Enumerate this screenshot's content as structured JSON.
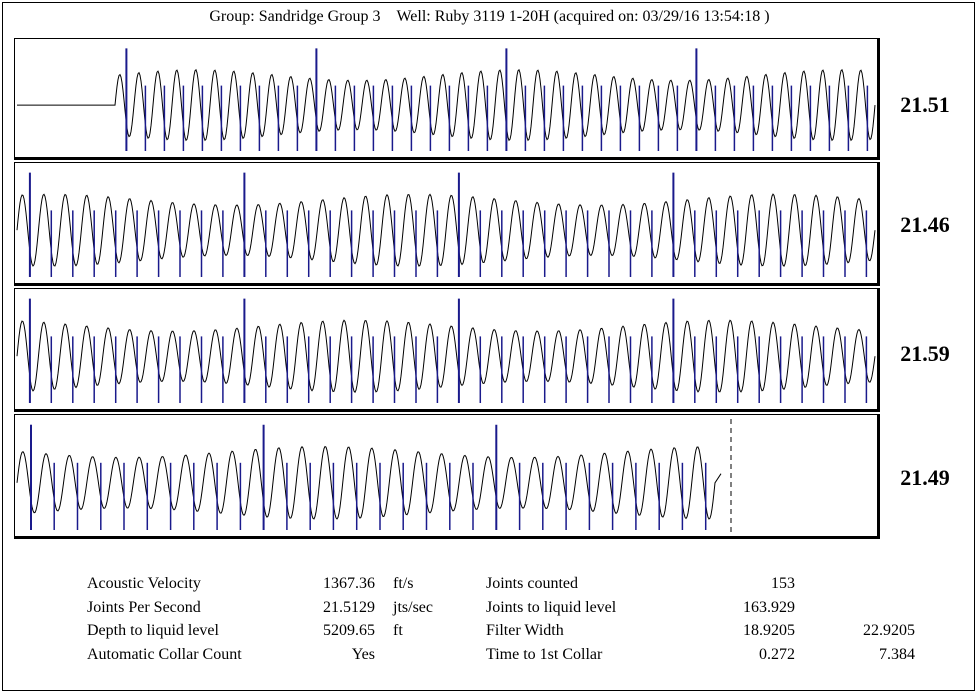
{
  "header": {
    "group": "Group: Sandridge Group 3",
    "well": "Well: Ruby 3119 1-20H (acquired on: 03/29/16 13:54:18 )"
  },
  "chart_data": {
    "type": "line",
    "description_panels": 4,
    "panels": [
      {
        "rate_label": "21.51",
        "start_flat": true,
        "cycles": 40,
        "collar_every": 10,
        "dashed_end": false
      },
      {
        "rate_label": "21.46",
        "start_flat": false,
        "cycles": 40,
        "collar_every": 10,
        "dashed_end": false
      },
      {
        "rate_label": "21.59",
        "start_flat": false,
        "cycles": 40,
        "collar_every": 10,
        "dashed_end": false
      },
      {
        "rate_label": "21.49",
        "start_flat": false,
        "cycles": 30,
        "collar_every": 10,
        "dashed_end": true
      }
    ],
    "colors": {
      "trace": "#000000",
      "markers": "#1a1a8c"
    }
  },
  "stats_left": {
    "labels": [
      "Acoustic Velocity",
      "Joints Per Second",
      "Depth to liquid level",
      "Automatic Collar Count"
    ],
    "values": [
      "1367.36",
      "21.5129",
      "5209.65",
      "Yes"
    ],
    "units": [
      "ft/s",
      "jts/sec",
      "ft",
      ""
    ]
  },
  "stats_right": {
    "labels": [
      "Joints counted",
      "Joints to liquid level",
      "Filter Width",
      "Time to 1st Collar"
    ],
    "values": [
      "153",
      "163.929",
      "18.9205",
      "0.272"
    ],
    "values2": [
      "",
      "",
      "22.9205",
      "7.384"
    ]
  }
}
